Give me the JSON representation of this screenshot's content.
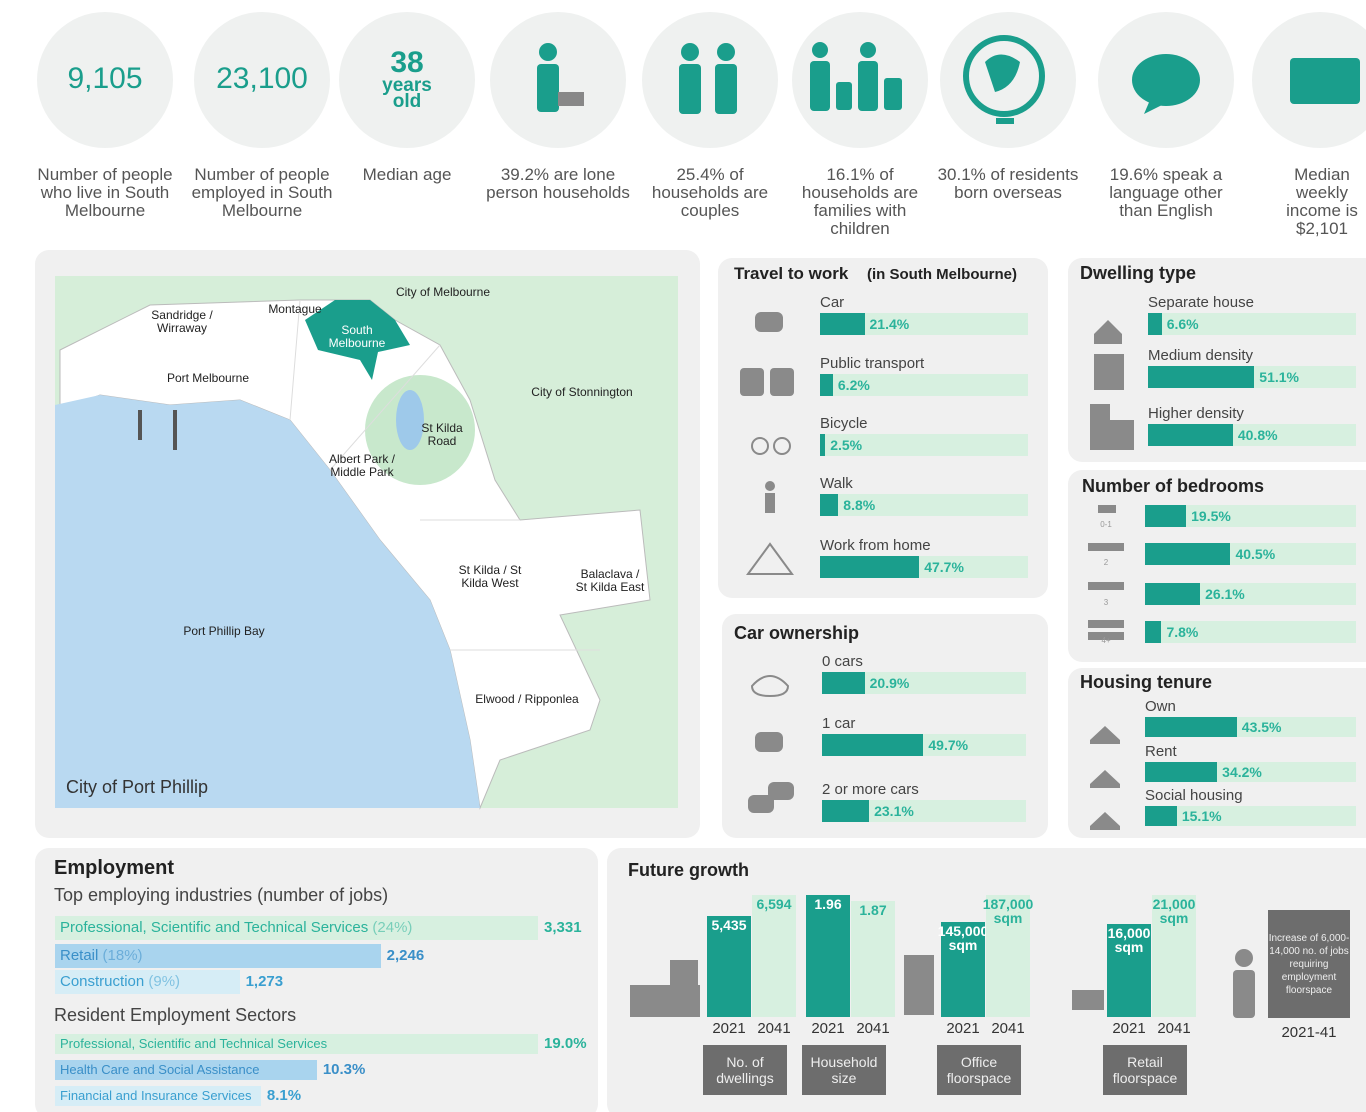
{
  "stats": [
    {
      "value": "9,105",
      "caption": "Number of people who live in South Melbourne"
    },
    {
      "value": "23,100",
      "caption": "Number of people employed in South Melbourne"
    },
    {
      "value": "38",
      "unit": "years old",
      "caption": "Median age"
    },
    {
      "caption": "39.2% are lone person households"
    },
    {
      "caption": "25.4% of households are couples"
    },
    {
      "caption": "16.1% of households are families with children"
    },
    {
      "caption": "30.1% of residents born overseas"
    },
    {
      "caption": "19.6% speak a language other than English"
    },
    {
      "caption": "Median weekly income is $2,101"
    }
  ],
  "map": {
    "title": "City of Port Phillip",
    "labels": [
      "City of Melbourne",
      "Sandridge / Wirraway",
      "Montague",
      "South Melbourne",
      "Port Melbourne",
      "City of Stonnington",
      "St Kilda Road",
      "Albert Park / Middle Park",
      "St Kilda / St Kilda West",
      "Balaclava / St Kilda East",
      "Port Phillip Bay",
      "Elwood / Ripponlea"
    ]
  },
  "travel": {
    "title": "Travel to work",
    "note": "(in South Melbourne)",
    "items": [
      {
        "label": "Car",
        "value": 21.4,
        "value_label": "21.4%"
      },
      {
        "label": "Public transport",
        "value": 6.2,
        "value_label": "6.2%"
      },
      {
        "label": "Bicycle",
        "value": 2.5,
        "value_label": "2.5%"
      },
      {
        "label": "Walk",
        "value": 8.8,
        "value_label": "8.8%"
      },
      {
        "label": "Work from home",
        "value": 47.7,
        "value_label": "47.7%"
      }
    ]
  },
  "car_ownership": {
    "title": "Car ownership",
    "items": [
      {
        "label": "0 cars",
        "value": 20.9,
        "value_label": "20.9%"
      },
      {
        "label": "1 car",
        "value": 49.7,
        "value_label": "49.7%"
      },
      {
        "label": "2 or more cars",
        "value": 23.1,
        "value_label": "23.1%"
      }
    ]
  },
  "dwelling": {
    "title": "Dwelling type",
    "items": [
      {
        "label": "Separate house",
        "value": 6.6,
        "value_label": "6.6%"
      },
      {
        "label": "Medium density",
        "value": 51.1,
        "value_label": "51.1%"
      },
      {
        "label": "Higher density",
        "value": 40.8,
        "value_label": "40.8%"
      }
    ]
  },
  "bedrooms": {
    "title": "Number of bedrooms",
    "items": [
      {
        "label": "0-1",
        "value": 19.5,
        "value_label": "19.5%"
      },
      {
        "label": "2",
        "value": 40.5,
        "value_label": "40.5%"
      },
      {
        "label": "3",
        "value": 26.1,
        "value_label": "26.1%"
      },
      {
        "label": "4+",
        "value": 7.8,
        "value_label": "7.8%"
      }
    ]
  },
  "tenure": {
    "title": "Housing tenure",
    "items": [
      {
        "label": "Own",
        "value": 43.5,
        "value_label": "43.5%"
      },
      {
        "label": "Rent",
        "value": 34.2,
        "value_label": "34.2%"
      },
      {
        "label": "Social housing",
        "value": 15.1,
        "value_label": "15.1%"
      }
    ]
  },
  "employment": {
    "title": "Employment",
    "industries_title": "Top employing industries (number of jobs)",
    "industries": [
      {
        "name": "Professional, Scientific and Technical Services",
        "share": "(24%)",
        "value": 3331,
        "value_label": "3,331"
      },
      {
        "name": "Retail",
        "share": "(18%)",
        "value": 2246,
        "value_label": "2,246"
      },
      {
        "name": "Construction",
        "share": "(9%)",
        "value": 1273,
        "value_label": "1,273"
      }
    ],
    "sectors_title": "Resident Employment Sectors",
    "sectors": [
      {
        "name": "Professional, Scientific and Technical Services",
        "value": 19.0,
        "value_label": "19.0%"
      },
      {
        "name": "Health Care and Social Assistance",
        "value": 10.3,
        "value_label": "10.3%"
      },
      {
        "name": "Financial and Insurance Services",
        "value": 8.1,
        "value_label": "8.1%"
      }
    ]
  },
  "future_growth": {
    "title": "Future growth",
    "years": [
      "2021",
      "2041"
    ],
    "groups": [
      {
        "caption": "No. of dwellings",
        "values": [
          5435,
          6594
        ],
        "value_labels": [
          "5,435",
          "6,594"
        ]
      },
      {
        "caption": "Household size",
        "values": [
          1.96,
          1.87
        ]
      },
      {
        "caption": "Office floorspace",
        "values": [
          145000,
          187000
        ],
        "value_labels": [
          "145,000 sqm",
          "187,000 sqm"
        ]
      },
      {
        "caption": "Retail floorspace",
        "values": [
          16000,
          21000
        ],
        "value_labels": [
          "16,000 sqm",
          "21,000 sqm"
        ]
      }
    ],
    "jobs": {
      "text": "Increase of 6,000-14,000 no. of jobs requiring employment floorspace",
      "period": "2021-41"
    }
  }
}
